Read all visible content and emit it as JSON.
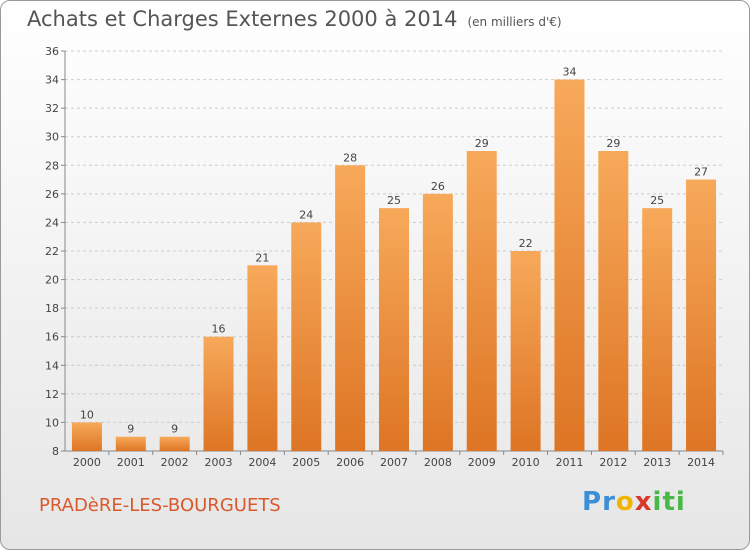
{
  "header": {
    "title": "Achats et Charges Externes 2000 à 2014",
    "subtitle": "(en milliers d'€)"
  },
  "footer": {
    "commune": "PRADèRE-LES-BOURGUETS",
    "logo_letters": [
      "P",
      "r",
      "o",
      "x",
      "i",
      "t",
      "i"
    ],
    "logo_colors": [
      "#3b8fd6",
      "#3b8fd6",
      "#f0b400",
      "#d9392c",
      "#4ab848",
      "#4ab848",
      "#4ab848"
    ]
  },
  "colors": {
    "bar_light": "#f7a95a",
    "bar_dark": "#dd7524",
    "grid": "#cccccc",
    "text": "#444444"
  },
  "chart_data": {
    "type": "bar",
    "categories": [
      "2000",
      "2001",
      "2002",
      "2003",
      "2004",
      "2005",
      "2006",
      "2007",
      "2008",
      "2009",
      "2010",
      "2011",
      "2012",
      "2013",
      "2014"
    ],
    "values": [
      10,
      9,
      9,
      16,
      21,
      24,
      28,
      25,
      26,
      29,
      22,
      34,
      29,
      25,
      27
    ],
    "title": "Achats et Charges Externes 2000 à 2014",
    "ylim": [
      8,
      36
    ],
    "yticks": [
      8,
      10,
      12,
      14,
      16,
      18,
      20,
      22,
      24,
      26,
      28,
      30,
      32,
      34,
      36
    ],
    "grid": true,
    "data_labels": true
  }
}
